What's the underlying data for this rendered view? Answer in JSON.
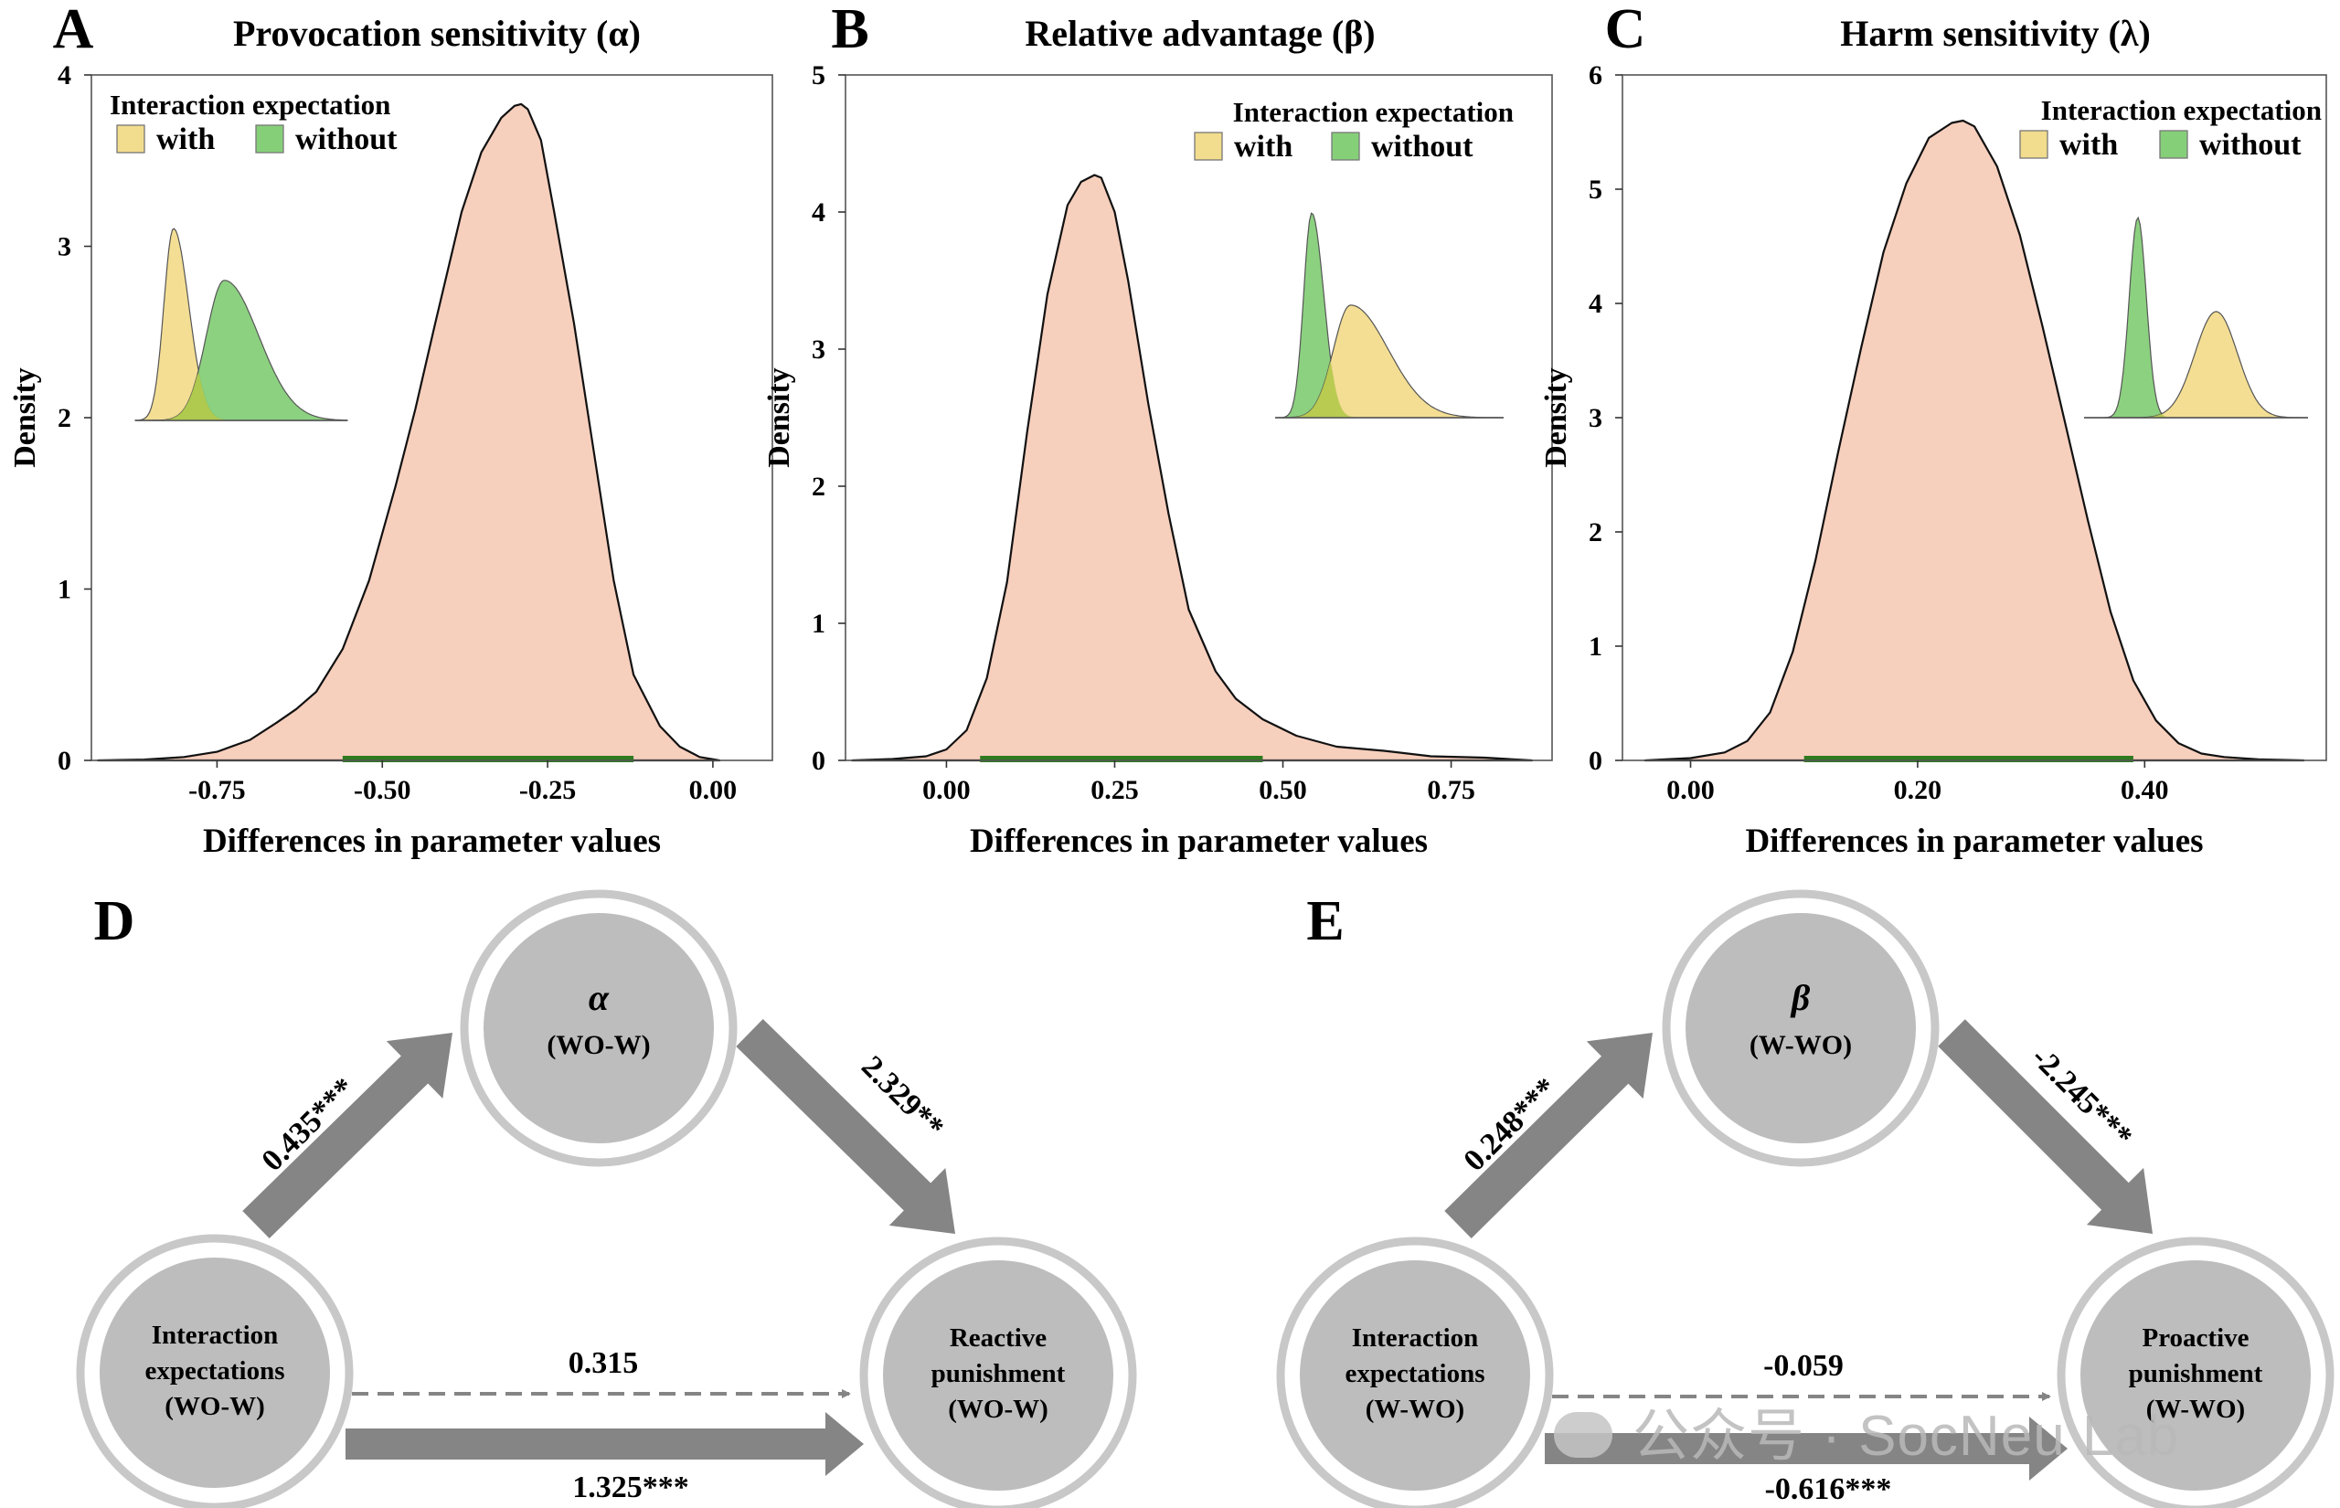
{
  "colors": {
    "main_fill": "#f7cfbd",
    "with_fill": "#f2dc8e",
    "without_fill": "#86cf79",
    "overlap_fill": "#b3c94a",
    "hdi_bar": "#2f7a1f",
    "arrow_gray": "#858585",
    "node_fill": "#bdbdbd",
    "node_ring": "#c8c8c8"
  },
  "chart_data": [
    {
      "type": "area",
      "panel_letter": "A",
      "title": "Provocation sensitivity (α)",
      "xlabel": "Differences in parameter values",
      "ylabel": "Density",
      "xlim": [
        -0.94,
        0.09
      ],
      "ylim": [
        0,
        4
      ],
      "x_ticks": [
        -0.75,
        -0.5,
        -0.25,
        0.0
      ],
      "x_tick_labels": [
        "-0.75",
        "-0.50",
        "-0.25",
        "0.00"
      ],
      "y_ticks": [
        0,
        1,
        2,
        3,
        4
      ],
      "y_tick_labels": [
        "0",
        "1",
        "2",
        "3",
        "4"
      ],
      "hdi": [
        -0.56,
        -0.12
      ],
      "series": [
        {
          "x": [
            -0.93,
            -0.86,
            -0.8,
            -0.75,
            -0.7,
            -0.66,
            -0.63,
            -0.6,
            -0.56,
            -0.52,
            -0.48,
            -0.45,
            -0.42,
            -0.38,
            -0.35,
            -0.32,
            -0.3,
            -0.29,
            -0.28,
            -0.26,
            -0.24,
            -0.21,
            -0.18,
            -0.15,
            -0.12,
            -0.08,
            -0.05,
            -0.02,
            0.01
          ],
          "y": [
            0,
            0.005,
            0.02,
            0.05,
            0.12,
            0.22,
            0.3,
            0.4,
            0.65,
            1.05,
            1.6,
            2.05,
            2.55,
            3.2,
            3.55,
            3.75,
            3.82,
            3.83,
            3.8,
            3.62,
            3.2,
            2.55,
            1.8,
            1.05,
            0.5,
            0.2,
            0.08,
            0.02,
            0
          ]
        }
      ],
      "legend": {
        "title": "Interaction expectation",
        "entries": [
          "with",
          "without"
        ]
      },
      "inset_order": [
        "with",
        "without"
      ]
    },
    {
      "type": "area",
      "panel_letter": "B",
      "title": "Relative advantage (β)",
      "xlabel": "Differences in parameter values",
      "ylabel": "Density",
      "xlim": [
        -0.15,
        0.9
      ],
      "ylim": [
        0,
        5
      ],
      "x_ticks": [
        0.0,
        0.25,
        0.5,
        0.75
      ],
      "x_tick_labels": [
        "0.00",
        "0.25",
        "0.50",
        "0.75"
      ],
      "y_ticks": [
        0,
        1,
        2,
        3,
        4,
        5
      ],
      "y_tick_labels": [
        "0",
        "1",
        "2",
        "3",
        "4",
        "5"
      ],
      "hdi": [
        0.05,
        0.47
      ],
      "series": [
        {
          "x": [
            -0.14,
            -0.08,
            -0.03,
            0.0,
            0.03,
            0.06,
            0.09,
            0.12,
            0.15,
            0.18,
            0.2,
            0.22,
            0.23,
            0.25,
            0.27,
            0.3,
            0.33,
            0.36,
            0.4,
            0.43,
            0.47,
            0.52,
            0.58,
            0.65,
            0.72,
            0.8,
            0.87
          ],
          "y": [
            0,
            0.01,
            0.03,
            0.08,
            0.22,
            0.6,
            1.3,
            2.4,
            3.4,
            4.05,
            4.22,
            4.27,
            4.25,
            4.0,
            3.5,
            2.6,
            1.8,
            1.1,
            0.65,
            0.45,
            0.3,
            0.18,
            0.1,
            0.07,
            0.03,
            0.02,
            0
          ]
        }
      ],
      "legend": {
        "title": "Interaction expectation",
        "entries": [
          "with",
          "without"
        ]
      },
      "inset_order": [
        "without",
        "with"
      ]
    },
    {
      "type": "area",
      "panel_letter": "C",
      "title": "Harm sensitivity (λ)",
      "xlabel": "Differences in parameter values",
      "ylabel": "Density",
      "xlim": [
        -0.06,
        0.56
      ],
      "ylim": [
        0,
        6
      ],
      "x_ticks": [
        0.0,
        0.2,
        0.4
      ],
      "x_tick_labels": [
        "0.00",
        "0.20",
        "0.40"
      ],
      "y_ticks": [
        0,
        1,
        2,
        3,
        4,
        5,
        6
      ],
      "y_tick_labels": [
        "0",
        "1",
        "2",
        "3",
        "4",
        "5",
        "6"
      ],
      "hdi": [
        0.1,
        0.39
      ],
      "series": [
        {
          "x": [
            -0.04,
            0.0,
            0.03,
            0.05,
            0.07,
            0.09,
            0.11,
            0.13,
            0.15,
            0.17,
            0.19,
            0.21,
            0.23,
            0.24,
            0.25,
            0.27,
            0.29,
            0.31,
            0.33,
            0.35,
            0.37,
            0.39,
            0.41,
            0.43,
            0.45,
            0.47,
            0.5,
            0.54
          ],
          "y": [
            0,
            0.02,
            0.07,
            0.17,
            0.42,
            0.95,
            1.75,
            2.7,
            3.6,
            4.45,
            5.05,
            5.45,
            5.58,
            5.6,
            5.55,
            5.2,
            4.6,
            3.8,
            2.95,
            2.1,
            1.3,
            0.7,
            0.35,
            0.15,
            0.06,
            0.03,
            0.01,
            0
          ]
        }
      ],
      "legend": {
        "title": "Interaction expectation",
        "entries": [
          "with",
          "without"
        ]
      },
      "inset_order": [
        "without",
        "with"
      ]
    }
  ],
  "diagrams": {
    "D": {
      "panel_letter": "D",
      "mediator": {
        "symbol": "α",
        "label": "(WO-W)"
      },
      "predictor": {
        "lines": [
          "Interaction",
          "expectations",
          "(WO-W)"
        ]
      },
      "outcome": {
        "lines": [
          "Reactive",
          "punishment",
          "(WO-W)"
        ]
      },
      "path_a": "0.435***",
      "path_b": "2.329**",
      "direct": "0.315",
      "total": "1.325***"
    },
    "E": {
      "panel_letter": "E",
      "mediator": {
        "symbol": "β",
        "label": "(W-WO)"
      },
      "predictor": {
        "lines": [
          "Interaction",
          "expectations",
          "(W-WO)"
        ]
      },
      "outcome": {
        "lines": [
          "Proactive",
          "punishment",
          "(W-WO)"
        ]
      },
      "path_a": "0.248***",
      "path_b": "-2.245***",
      "direct": "-0.059",
      "total": "-0.616***"
    }
  },
  "watermark": "公众号 · SocNeu Lab"
}
